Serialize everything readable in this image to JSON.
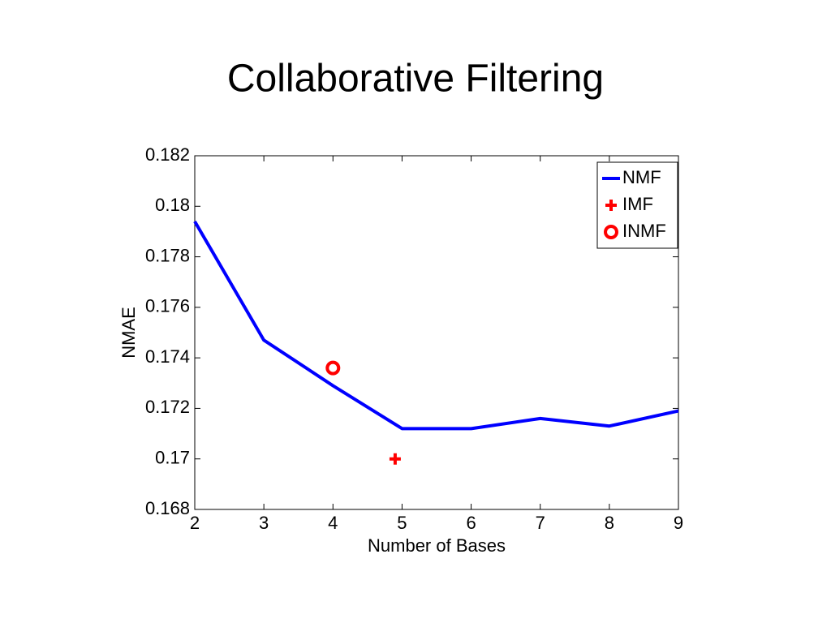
{
  "chart_data": {
    "type": "line",
    "title": "Collaborative Filtering",
    "xlabel": "Number of Bases",
    "ylabel": "NMAE",
    "xlim": [
      2,
      9
    ],
    "xticks": [
      2,
      3,
      4,
      5,
      6,
      7,
      8,
      9
    ],
    "ylim": [
      0.168,
      0.182
    ],
    "yticks": [
      0.168,
      0.17,
      0.172,
      0.174,
      0.176,
      0.178,
      0.18,
      0.182
    ],
    "legend": "upper right",
    "series": [
      {
        "name": "NMF",
        "color": "#0000ff",
        "mode": "line",
        "x": [
          2,
          3,
          4,
          5,
          6,
          7,
          8,
          9
        ],
        "values": [
          0.1794,
          0.1747,
          0.1729,
          0.1712,
          0.1712,
          0.1716,
          0.1713,
          0.1719
        ]
      },
      {
        "name": "IMF",
        "color": "#ff0000",
        "mode": "marker",
        "marker": "plus",
        "x": [
          4.9
        ],
        "values": [
          0.17
        ]
      },
      {
        "name": "INMF",
        "color": "#ff0000",
        "mode": "marker",
        "marker": "circle",
        "x": [
          4
        ],
        "values": [
          0.1736
        ]
      }
    ]
  }
}
